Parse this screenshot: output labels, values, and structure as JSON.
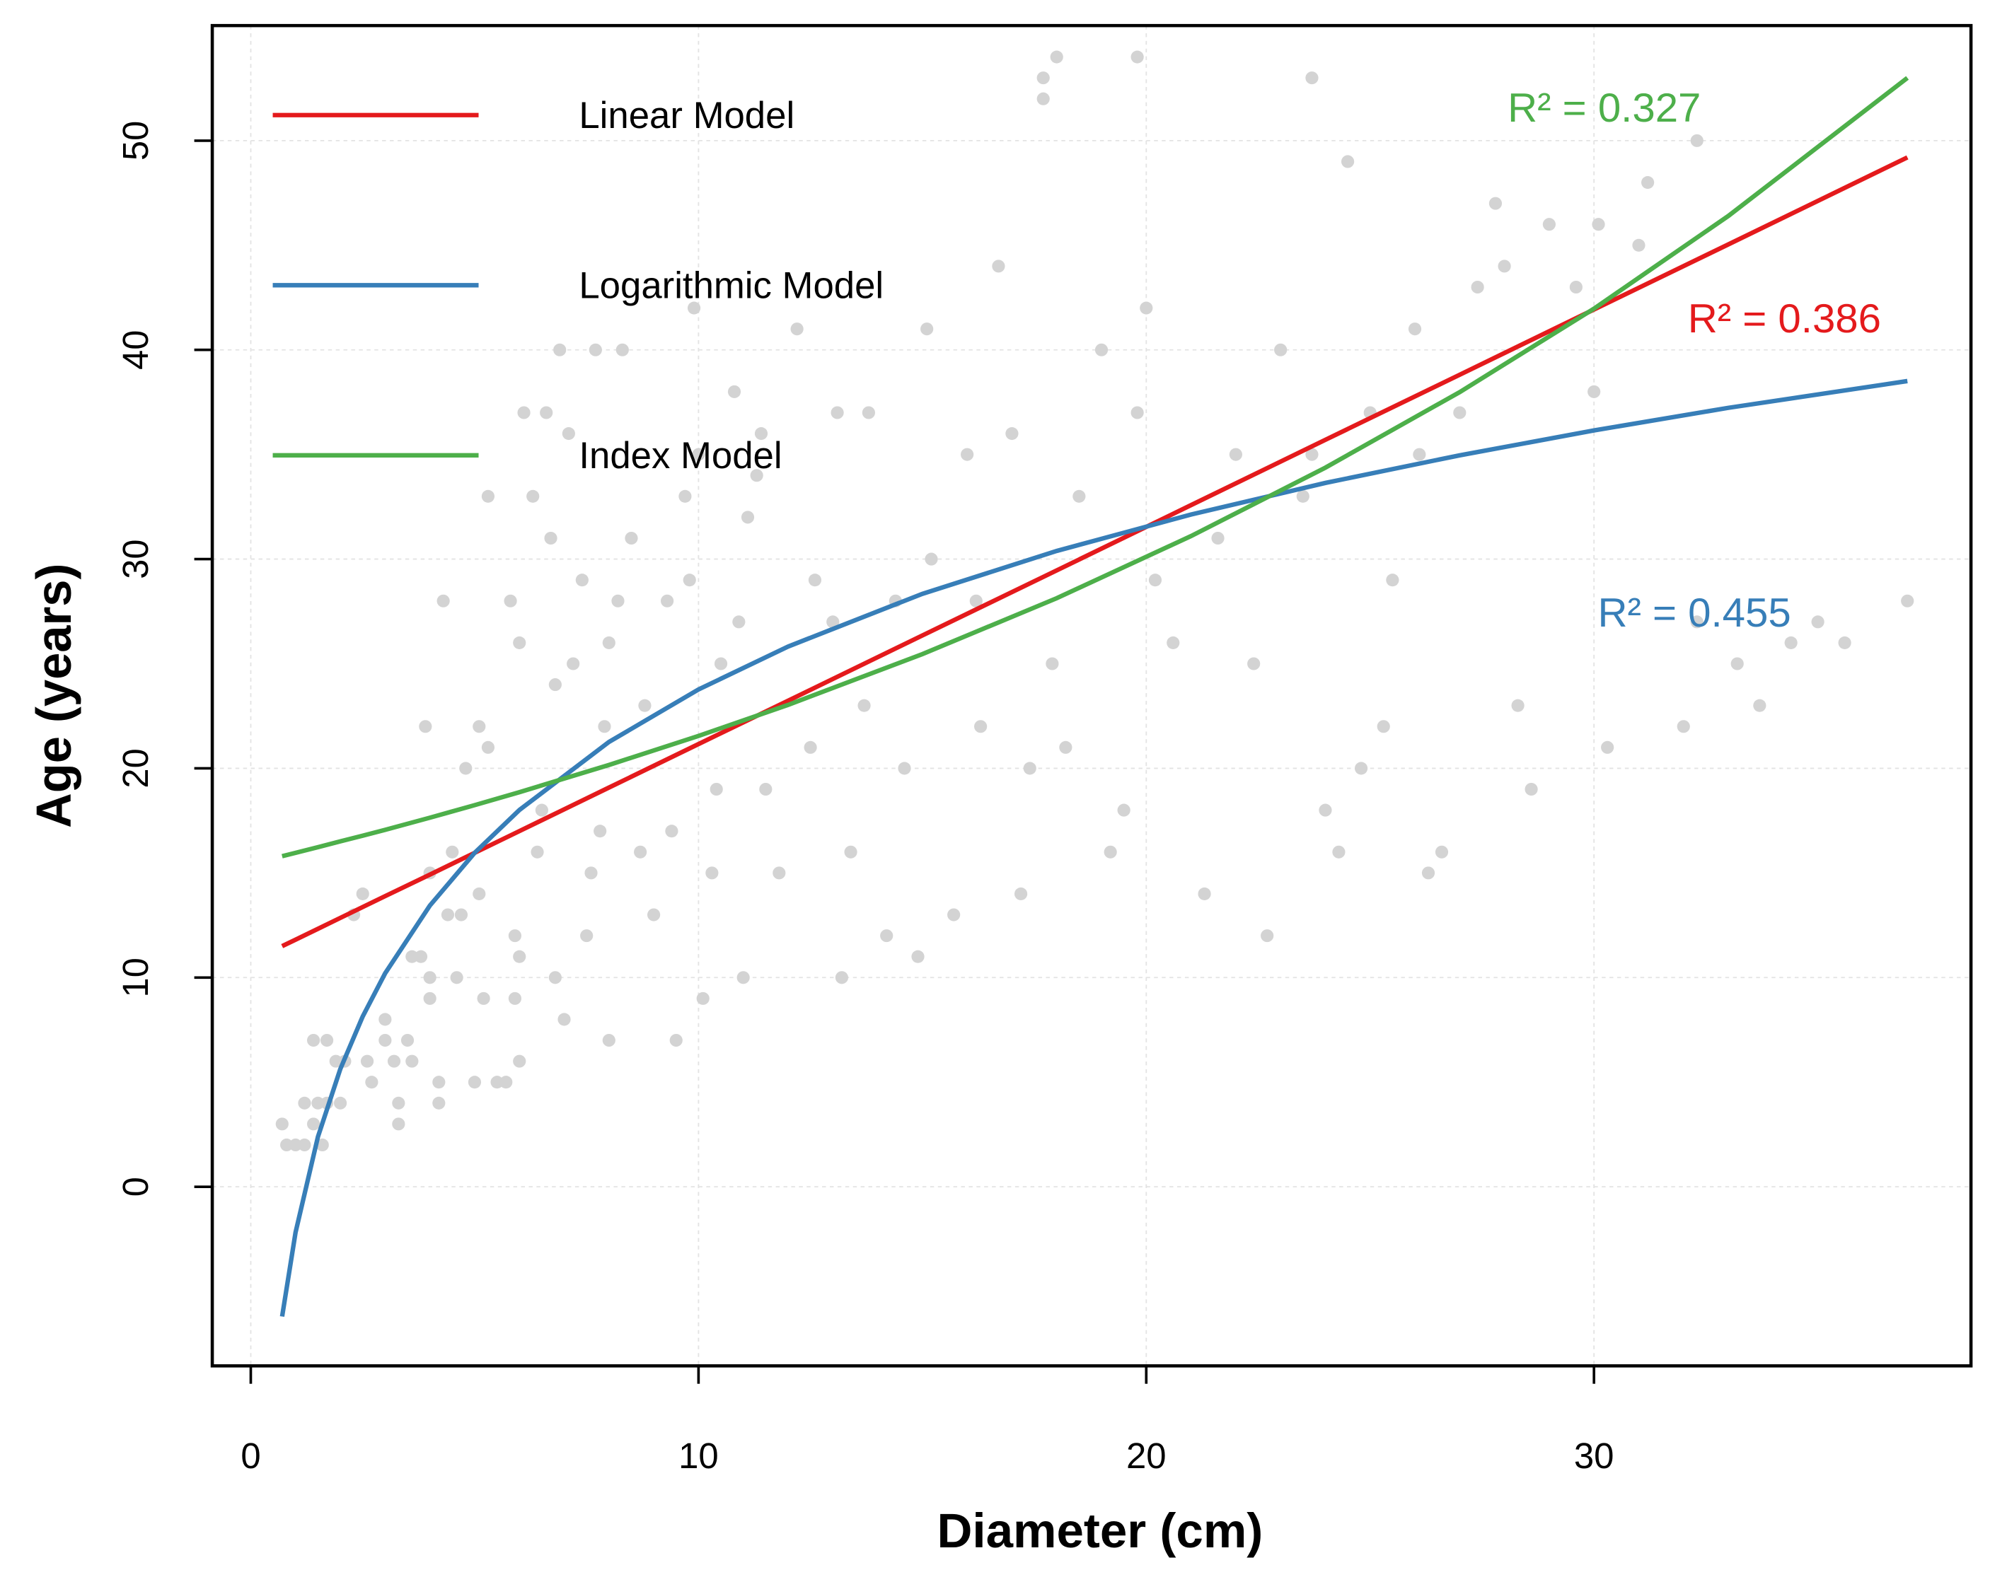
{
  "chart_data": {
    "type": "scatter",
    "xlabel": "Diameter (cm)",
    "ylabel": "Age (years)",
    "xlim": [
      -0.86,
      38.42
    ],
    "ylim": [
      -8.56,
      55.5
    ],
    "xticks": [
      0,
      10,
      20,
      30
    ],
    "yticks": [
      0,
      10,
      20,
      30,
      40,
      50
    ],
    "grid": true,
    "legend": "top-left",
    "points": {
      "color": "#d3d3d3",
      "x": [
        0.7,
        0.8,
        1,
        1.2,
        1.2,
        1.4,
        1.5,
        1.4,
        1.7,
        1.6,
        1.7,
        1.9,
        2.1,
        2,
        2.3,
        2.5,
        2.6,
        2.7,
        3,
        3,
        3.2,
        3.3,
        3.3,
        3.5,
        3.6,
        3.6,
        3.8,
        3.9,
        4,
        4,
        4,
        4.2,
        4.2,
        4.3,
        4.4,
        4.5,
        4.6,
        4.7,
        4.8,
        5,
        5.1,
        5.1,
        5.2,
        5.3,
        5.3,
        5.5,
        5.7,
        5.8,
        5.9,
        5.9,
        6,
        6,
        6,
        6.1,
        6.3,
        6.4,
        6.5,
        6.6,
        6.7,
        6.8,
        6.8,
        6.9,
        7,
        7.1,
        7.2,
        7.4,
        7.5,
        7.6,
        7.7,
        7.8,
        7.9,
        8,
        8,
        8.2,
        8.3,
        8.5,
        8.7,
        8.8,
        9,
        9.3,
        9.4,
        9.5,
        9.7,
        9.8,
        9.9,
        10,
        10.1,
        10.3,
        10.4,
        10.5,
        10.8,
        10.9,
        11,
        11.1,
        11.3,
        11.4,
        11.5,
        11.8,
        12.2,
        12.5,
        12.6,
        13,
        13.1,
        13.2,
        13.4,
        13.7,
        13.8,
        14.2,
        14.4,
        14.6,
        14.9,
        15.1,
        15.2,
        15.7,
        16,
        16.2,
        16.3,
        16.7,
        17,
        17.2,
        17.4,
        17.7,
        17.7,
        18,
        17.9,
        18.2,
        18.5,
        19.8,
        19,
        19.2,
        19.5,
        19.8,
        20,
        20.2,
        20.6,
        21.3,
        21.6,
        22,
        22.4,
        23.7,
        22.7,
        23,
        23.5,
        23.7,
        24,
        24.3,
        24.5,
        24.8,
        25,
        25.3,
        25.5,
        26,
        26.1,
        26.3,
        26.6,
        27,
        27.4,
        27.8,
        28,
        28.3,
        28.6,
        29,
        29.6,
        30,
        30.1,
        30.3,
        31,
        31.2,
        32.3,
        32,
        32.3,
        33.2,
        33.7,
        34.4,
        35,
        35.6,
        37
      ],
      "values": [
        3,
        2,
        2,
        2,
        4,
        3,
        4,
        7,
        7,
        2,
        4,
        6,
        6,
        4,
        13,
        14,
        6,
        5,
        8,
        7,
        6,
        3,
        4,
        7,
        6,
        11,
        11,
        22,
        15,
        10,
        9,
        5,
        4,
        28,
        13,
        16,
        10,
        13,
        20,
        5,
        14,
        22,
        9,
        21,
        33,
        5,
        5,
        28,
        12,
        9,
        26,
        6,
        11,
        37,
        33,
        16,
        18,
        37,
        31,
        24,
        10,
        40,
        8,
        36,
        25,
        29,
        12,
        15,
        40,
        17,
        22,
        7,
        26,
        28,
        40,
        31,
        16,
        23,
        13,
        28,
        17,
        7,
        33,
        29,
        42,
        35,
        9,
        15,
        19,
        25,
        38,
        27,
        10,
        32,
        34,
        36,
        19,
        15,
        41,
        21,
        29,
        27,
        37,
        10,
        16,
        23,
        37,
        12,
        28,
        20,
        11,
        41,
        30,
        13,
        35,
        28,
        22,
        44,
        36,
        14,
        20,
        52,
        53,
        54,
        25,
        21,
        33,
        54,
        40,
        16,
        18,
        37,
        42,
        29,
        26,
        14,
        31,
        35,
        25,
        53,
        12,
        40,
        33,
        35,
        18,
        16,
        49,
        20,
        37,
        22,
        29,
        41,
        35,
        15,
        16,
        37,
        43,
        47,
        44,
        23,
        19,
        46,
        43,
        38,
        46,
        21,
        45,
        48,
        50,
        22,
        27,
        25,
        23,
        26,
        27,
        26,
        28
      ]
    },
    "series": [
      {
        "name": "Linear Model",
        "color": "#e41a1c",
        "x": [
          0.7,
          1,
          1.5,
          2,
          2.5,
          3,
          4,
          5,
          6,
          8,
          10,
          12,
          15,
          18,
          21,
          24,
          27,
          30,
          33,
          37
        ],
        "values": [
          11.5,
          11.81,
          12.33,
          12.85,
          13.37,
          13.89,
          14.92,
          15.96,
          17.0,
          19.08,
          21.16,
          23.23,
          26.35,
          29.46,
          32.58,
          35.7,
          38.81,
          41.93,
          45.04,
          49.2
        ]
      },
      {
        "name": "Logarithmic Model",
        "color": "#377eb8",
        "x": [
          0.7,
          1,
          1.5,
          2,
          2.5,
          3,
          4,
          5,
          6,
          8,
          10,
          12,
          15,
          18,
          21,
          24,
          27,
          30,
          33,
          37
        ],
        "values": [
          -6.2,
          -2.18,
          2.39,
          5.63,
          8.14,
          10.2,
          13.44,
          15.96,
          18.01,
          21.26,
          23.77,
          25.82,
          28.34,
          30.39,
          32.13,
          33.64,
          34.96,
          36.15,
          37.23,
          38.51
        ]
      },
      {
        "name": "Index Model",
        "color": "#4daf4a",
        "x": [
          0.7,
          1,
          1.5,
          2,
          2.5,
          3,
          4,
          5,
          6,
          8,
          10,
          12,
          15,
          18,
          21,
          24,
          27,
          30,
          33,
          37
        ],
        "values": [
          15.8,
          15.96,
          16.23,
          16.51,
          16.78,
          17.06,
          17.64,
          18.24,
          18.86,
          20.16,
          21.55,
          23.03,
          25.46,
          28.13,
          31.1,
          34.37,
          37.98,
          41.97,
          46.4,
          53.0
        ]
      }
    ],
    "annotations": [
      {
        "text": "R² = 0.327",
        "color": "#4daf4a"
      },
      {
        "text": "R² = 0.386",
        "color": "#e41a1c"
      },
      {
        "text": "R² = 0.455",
        "color": "#377eb8"
      }
    ]
  }
}
